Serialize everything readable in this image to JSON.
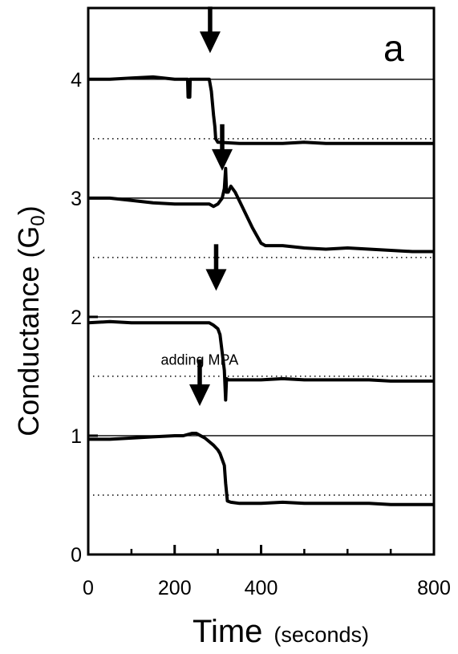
{
  "chart_data": {
    "type": "line",
    "panel_label": "a",
    "xlabel": "Time",
    "xlabel_unit": "(seconds)",
    "ylabel": "Conductance (G",
    "ylabel_subscript": "0",
    "ylabel_close": ")",
    "xlim": [
      0,
      800
    ],
    "ylim": [
      0,
      4.6
    ],
    "x_ticks": [
      0,
      200,
      400,
      800
    ],
    "x_tick_labels": [
      "0",
      "200",
      "400",
      "800"
    ],
    "x_minor_ticks": [
      100,
      300,
      500,
      600,
      700
    ],
    "y_ticks": [
      0,
      1,
      2,
      3,
      4
    ],
    "y_tick_labels": [
      "0",
      "1",
      "2",
      "3",
      "4"
    ],
    "reference_lines_solid": [
      1,
      2,
      3,
      4
    ],
    "reference_lines_dotted": [
      0.5,
      1.5,
      2.5,
      3.5
    ],
    "series": [
      {
        "x": [
          0,
          50,
          100,
          150,
          200,
          230,
          231,
          235,
          236,
          250,
          280,
          285,
          290,
          293,
          295,
          300,
          350,
          400,
          450,
          500,
          550,
          600,
          650,
          700,
          750,
          800
        ],
        "y": [
          4.0,
          4.0,
          4.01,
          4.02,
          4.0,
          4.0,
          3.85,
          3.85,
          4.0,
          4.0,
          4.0,
          3.9,
          3.7,
          3.6,
          3.5,
          3.47,
          3.46,
          3.46,
          3.46,
          3.47,
          3.46,
          3.46,
          3.46,
          3.46,
          3.46,
          3.46
        ]
      },
      {
        "x": [
          0,
          50,
          100,
          150,
          200,
          250,
          280,
          290,
          300,
          310,
          315,
          318,
          320,
          324,
          330,
          340,
          360,
          380,
          400,
          410,
          450,
          500,
          550,
          600,
          650,
          700,
          750,
          800
        ],
        "y": [
          3.0,
          3.0,
          2.98,
          2.96,
          2.95,
          2.95,
          2.95,
          2.93,
          2.95,
          3.0,
          3.08,
          3.25,
          3.05,
          3.05,
          3.1,
          3.05,
          2.9,
          2.75,
          2.62,
          2.6,
          2.6,
          2.58,
          2.57,
          2.58,
          2.57,
          2.56,
          2.55,
          2.55
        ]
      },
      {
        "x": [
          0,
          50,
          100,
          150,
          200,
          250,
          280,
          290,
          300,
          305,
          310,
          315,
          318,
          320,
          325,
          330,
          350,
          400,
          450,
          500,
          550,
          600,
          650,
          700,
          750,
          800
        ],
        "y": [
          1.95,
          1.96,
          1.95,
          1.95,
          1.95,
          1.95,
          1.95,
          1.93,
          1.9,
          1.85,
          1.7,
          1.55,
          1.3,
          1.48,
          1.47,
          1.47,
          1.47,
          1.47,
          1.48,
          1.47,
          1.47,
          1.47,
          1.47,
          1.46,
          1.46,
          1.46
        ]
      },
      {
        "x": [
          0,
          50,
          100,
          150,
          200,
          220,
          240,
          250,
          260,
          270,
          280,
          290,
          300,
          305,
          310,
          315,
          318,
          322,
          330,
          350,
          400,
          450,
          500,
          550,
          600,
          650,
          700,
          750,
          800
        ],
        "y": [
          0.97,
          0.97,
          0.98,
          0.99,
          1.0,
          1.0,
          1.02,
          1.02,
          1.0,
          0.98,
          0.95,
          0.92,
          0.88,
          0.85,
          0.8,
          0.75,
          0.6,
          0.45,
          0.44,
          0.43,
          0.43,
          0.44,
          0.43,
          0.43,
          0.43,
          0.43,
          0.42,
          0.42,
          0.42
        ]
      }
    ],
    "arrows": [
      {
        "x": 282,
        "y": 4.22
      },
      {
        "x": 310,
        "y": 3.23
      },
      {
        "x": 296,
        "y": 2.22
      },
      {
        "x": 258,
        "y": 1.25
      }
    ],
    "annotation": {
      "text": "adding MPA",
      "x": 168,
      "y": 1.55
    }
  }
}
